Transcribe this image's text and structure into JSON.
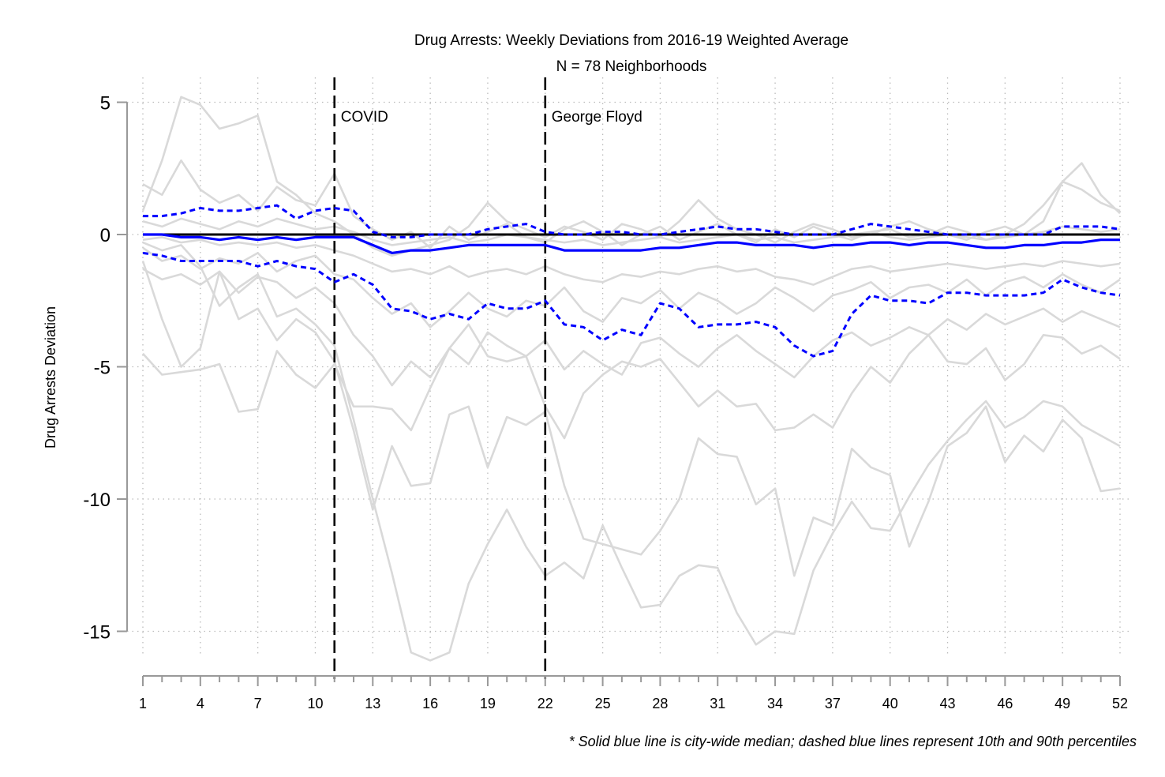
{
  "chart_data": {
    "type": "line",
    "title": "Drug Arrests: Weekly Deviations from 2016-19 Weighted Average",
    "subtitle": "N = 78 Neighborhoods",
    "ylabel": "Drug Arrests Deviation",
    "xlabel": "",
    "xlim": [
      1,
      52
    ],
    "ylim": [
      -16.5,
      6
    ],
    "yticks": [
      5,
      0,
      -5,
      -10,
      -15
    ],
    "xticks": [
      1,
      4,
      7,
      10,
      13,
      16,
      19,
      22,
      25,
      28,
      31,
      34,
      37,
      40,
      43,
      46,
      49,
      52
    ],
    "grid": true,
    "reference_line": 0,
    "events": [
      {
        "x": 11,
        "label": "COVID"
      },
      {
        "x": 22,
        "label": "George Floyd"
      }
    ],
    "note": "* Solid blue line is city-wide median; dashed blue lines represent 10th and 90th percentiles",
    "colors": {
      "neighborhood": "#d9d9d9",
      "median": "#0000ff",
      "percentile": "#0000ff",
      "zero": "#000000",
      "axis": "#999999"
    },
    "series": [
      {
        "values": [
          0.0,
          0.0,
          -0.1,
          -0.1,
          -0.2,
          -0.1,
          -0.2,
          -0.1,
          -0.2,
          -0.1,
          -0.1,
          -0.1,
          -0.4,
          -0.7,
          -0.6,
          -0.6,
          -0.5,
          -0.4,
          -0.4,
          -0.4,
          -0.4,
          -0.4,
          -0.6,
          -0.6,
          -0.6,
          -0.6,
          -0.6,
          -0.5,
          -0.5,
          -0.4,
          -0.3,
          -0.3,
          -0.4,
          -0.4,
          -0.4,
          -0.5,
          -0.4,
          -0.4,
          -0.3,
          -0.3,
          -0.4,
          -0.3,
          -0.3,
          -0.4,
          -0.5,
          -0.5,
          -0.4,
          -0.4,
          -0.3,
          -0.3,
          -0.2,
          -0.2
        ]
      },
      {
        "values": [
          0.7,
          0.7,
          0.8,
          1.0,
          0.9,
          0.9,
          1.0,
          1.1,
          0.6,
          0.9,
          1.0,
          0.9,
          0.1,
          -0.1,
          -0.1,
          0.0,
          0.0,
          0.0,
          0.2,
          0.3,
          0.4,
          0.1,
          0.0,
          0.0,
          0.1,
          0.1,
          0.0,
          0.0,
          0.1,
          0.2,
          0.3,
          0.2,
          0.2,
          0.1,
          0.0,
          0.0,
          0.0,
          0.2,
          0.4,
          0.3,
          0.2,
          0.1,
          0.0,
          0.0,
          0.0,
          0.0,
          0.0,
          0.0,
          0.3,
          0.3,
          0.3,
          0.2
        ]
      },
      {
        "values": [
          -0.7,
          -0.8,
          -1.0,
          -1.0,
          -1.0,
          -1.0,
          -1.2,
          -1.0,
          -1.2,
          -1.3,
          -1.8,
          -1.5,
          -1.9,
          -2.8,
          -2.9,
          -3.2,
          -3.0,
          -3.2,
          -2.6,
          -2.8,
          -2.8,
          -2.5,
          -3.4,
          -3.5,
          -4.0,
          -3.6,
          -3.8,
          -2.6,
          -2.8,
          -3.5,
          -3.4,
          -3.4,
          -3.3,
          -3.5,
          -4.2,
          -4.6,
          -4.4,
          -3.0,
          -2.3,
          -2.5,
          -2.5,
          -2.6,
          -2.2,
          -2.2,
          -2.3,
          -2.3,
          -2.3,
          -2.2,
          -1.7,
          -2.0,
          -2.2,
          -2.3
        ]
      },
      {
        "values": [
          -0.2,
          -0.1,
          -0.3,
          -0.2,
          -0.4,
          -0.3,
          -0.4,
          -0.3,
          -0.5,
          -0.4,
          -0.6,
          -0.8,
          -1.1,
          -1.4,
          -1.3,
          -1.5,
          -1.2,
          -1.6,
          -1.4,
          -1.3,
          -1.5,
          -1.2,
          -1.5,
          -1.7,
          -1.8,
          -1.5,
          -1.6,
          -1.4,
          -1.5,
          -1.3,
          -1.2,
          -1.4,
          -1.3,
          -1.6,
          -1.7,
          -1.9,
          -1.6,
          -1.3,
          -1.2,
          -1.4,
          -1.3,
          -1.2,
          -1.1,
          -1.2,
          -1.3,
          -1.2,
          -1.1,
          -1.2,
          -1.0,
          -1.1,
          -1.2,
          -1.1
        ]
      },
      {
        "values": [
          0.5,
          0.3,
          0.6,
          0.4,
          0.2,
          0.5,
          0.3,
          0.6,
          0.4,
          0.2,
          0.3,
          0.1,
          -0.2,
          -0.4,
          -0.3,
          -0.2,
          -0.1,
          -0.3,
          -0.2,
          0.0,
          -0.1,
          -0.2,
          -0.3,
          -0.2,
          -0.4,
          -0.3,
          -0.2,
          -0.1,
          -0.3,
          -0.2,
          -0.1,
          0.0,
          -0.2,
          -0.1,
          -0.3,
          -0.2,
          -0.1,
          0.0,
          0.1,
          -0.1,
          -0.2,
          -0.1,
          0.0,
          -0.1,
          -0.2,
          -0.1,
          0.0,
          0.1,
          0.3,
          0.2,
          0.1,
          0.2
        ]
      },
      {
        "values": [
          -0.5,
          -1.0,
          -0.8,
          -1.3,
          -0.9,
          -1.1,
          -0.7,
          -1.4,
          -1.0,
          -0.8,
          -1.5,
          -1.7,
          -2.4,
          -3.0,
          -2.6,
          -3.5,
          -2.9,
          -2.2,
          -2.8,
          -3.1,
          -2.5,
          -2.7,
          -2.0,
          -2.9,
          -3.3,
          -2.4,
          -2.6,
          -2.1,
          -2.8,
          -2.2,
          -2.5,
          -3.0,
          -2.6,
          -2.0,
          -2.4,
          -2.9,
          -2.3,
          -2.1,
          -1.8,
          -2.4,
          -2.0,
          -1.9,
          -2.2,
          -1.7,
          -2.3,
          -1.8,
          -1.6,
          -2.0,
          -1.5,
          -1.9,
          -2.2,
          -1.7
        ]
      },
      {
        "values": [
          0.9,
          2.8,
          5.2,
          4.9,
          4.0,
          4.2,
          4.5,
          2.0,
          1.5,
          0.8,
          0.5,
          0.0,
          -0.5,
          -0.8,
          -0.6,
          -0.4,
          -0.2,
          0.3,
          1.2,
          0.5,
          0.2,
          -0.1,
          0.3,
          0.1,
          -0.2,
          0.4,
          0.2,
          -0.1,
          0.5,
          1.3,
          0.6,
          0.2,
          0.0,
          -0.3,
          0.1,
          0.4,
          0.2,
          -0.1,
          0.0,
          0.3,
          0.5,
          0.2,
          0.0,
          -0.2,
          0.1,
          0.3,
          0.0,
          0.5,
          2.0,
          2.7,
          1.5,
          0.8
        ]
      },
      {
        "values": [
          -4.5,
          -5.3,
          -5.2,
          -5.1,
          -4.9,
          -6.7,
          -6.6,
          -4.4,
          -5.3,
          -5.8,
          -4.9,
          -6.5,
          -6.5,
          -6.6,
          -7.4,
          -5.8,
          -4.3,
          -3.4,
          -4.6,
          -4.8,
          -4.6,
          -6.5,
          -7.7,
          -6.0,
          -5.3,
          -4.8,
          -5.0,
          -4.7,
          -5.6,
          -6.5,
          -5.9,
          -6.5,
          -6.4,
          -7.4,
          -7.3,
          -6.8,
          -7.3,
          -6.0,
          -5.0,
          -5.6,
          -4.5,
          -3.8,
          -4.8,
          -4.9,
          -4.3,
          -5.5,
          -4.9,
          -3.8,
          -3.9,
          -4.5,
          -4.2,
          -4.7
        ]
      },
      {
        "values": [
          -1.0,
          -3.2,
          -5.0,
          -4.3,
          -1.4,
          -3.2,
          -2.8,
          -4.0,
          -3.2,
          -3.7,
          -4.8,
          -7.4,
          -10.4,
          -8.0,
          -9.5,
          -9.4,
          -6.8,
          -6.5,
          -8.8,
          -6.9,
          -7.2,
          -6.7,
          -9.5,
          -11.5,
          -11.7,
          -11.9,
          -12.1,
          -11.2,
          -10.0,
          -7.7,
          -8.3,
          -8.4,
          -10.2,
          -9.6,
          -12.9,
          -10.7,
          -11.0,
          -8.1,
          -8.8,
          -9.1,
          -11.8,
          -10.1,
          -8.0,
          -7.5,
          -6.5,
          -8.6,
          -7.6,
          -8.2,
          -7.0,
          -7.7,
          -9.7,
          -9.6
        ]
      },
      {
        "values": [
          -0.3,
          -0.6,
          -0.4,
          -1.2,
          -2.7,
          -2.0,
          -1.5,
          -3.1,
          -2.8,
          -3.4,
          -4.2,
          -7.0,
          -10.0,
          -12.8,
          -15.8,
          -16.1,
          -15.8,
          -13.2,
          -11.7,
          -10.4,
          -11.8,
          -12.9,
          -12.4,
          -13.0,
          -11.0,
          -12.6,
          -14.1,
          -14.0,
          -12.9,
          -12.5,
          -12.6,
          -14.3,
          -15.5,
          -15.0,
          -15.1,
          -12.7,
          -11.3,
          -10.1,
          -11.1,
          -11.2,
          -9.9,
          -8.7,
          -7.8,
          -7.0,
          -6.3,
          -7.3,
          -6.9,
          -6.3,
          -6.5,
          -7.2,
          -7.6,
          -8.0
        ]
      },
      {
        "values": [
          1.9,
          1.5,
          2.8,
          1.7,
          1.2,
          1.5,
          0.9,
          1.8,
          1.3,
          1.1,
          2.3,
          0.7,
          0.2,
          -0.2,
          0.1,
          -0.5,
          0.3,
          -0.2,
          0.1,
          0.4,
          -0.1,
          -0.3,
          0.2,
          0.5,
          0.1,
          -0.4,
          0.0,
          0.3,
          -0.2,
          0.1,
          0.4,
          0.0,
          -0.3,
          0.2,
          -0.1,
          0.3,
          0.0,
          -0.2,
          0.1,
          0.2,
          -0.1,
          0.0,
          0.3,
          0.1,
          -0.2,
          0.0,
          0.4,
          1.1,
          2.0,
          1.7,
          1.2,
          0.9
        ]
      },
      {
        "values": [
          -1.3,
          -1.7,
          -1.5,
          -1.9,
          -1.4,
          -2.2,
          -1.6,
          -1.8,
          -2.4,
          -2.0,
          -2.6,
          -3.8,
          -4.6,
          -5.7,
          -4.8,
          -5.4,
          -4.3,
          -4.9,
          -3.7,
          -4.2,
          -4.6,
          -4.0,
          -5.1,
          -4.4,
          -4.9,
          -5.3,
          -4.1,
          -3.9,
          -4.5,
          -5.0,
          -4.3,
          -3.8,
          -4.4,
          -4.9,
          -5.4,
          -4.6,
          -4.0,
          -3.7,
          -4.2,
          -3.9,
          -3.5,
          -3.8,
          -3.2,
          -3.6,
          -3.0,
          -3.4,
          -3.1,
          -2.8,
          -3.3,
          -2.9,
          -3.2,
          -3.5
        ]
      }
    ]
  }
}
